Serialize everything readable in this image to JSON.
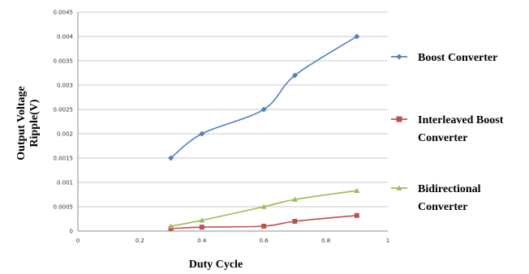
{
  "chart_data": {
    "type": "line",
    "title": "",
    "xlabel": "Duty Cycle",
    "ylabel": [
      "Output Voltage",
      "Ripple(V)"
    ],
    "xlim": [
      0,
      1
    ],
    "ylim": [
      0,
      0.0045
    ],
    "x_ticks": [
      0,
      0.2,
      0.4,
      0.6,
      0.8,
      1
    ],
    "x_tick_labels": [
      "0",
      "0.2",
      "0.4",
      "0.6",
      "0.8",
      "1"
    ],
    "y_ticks": [
      0,
      0.0005,
      0.001,
      0.0015,
      0.002,
      0.0025,
      0.003,
      0.0035,
      0.004,
      0.0045
    ],
    "y_tick_labels": [
      "0",
      "0.0005",
      "0.001",
      "0.0015",
      "0.002",
      "0.0025",
      "0.003",
      "0.0035",
      "0.004",
      "0.0045"
    ],
    "grid": "horizontal",
    "legend_position": "right",
    "series": [
      {
        "name": [
          "Boost Converter"
        ],
        "color": "#4f81bd",
        "marker": "diamond",
        "x": [
          0.3,
          0.4,
          0.6,
          0.7,
          0.9
        ],
        "y": [
          0.0015,
          0.002,
          0.0025,
          0.0032,
          0.004
        ]
      },
      {
        "name": [
          "Interleaved Boost",
          "Converter"
        ],
        "color": "#c0504d",
        "marker": "square",
        "x": [
          0.3,
          0.4,
          0.6,
          0.7,
          0.9
        ],
        "y": [
          5e-05,
          8e-05,
          0.0001,
          0.0002,
          0.00032
        ]
      },
      {
        "name": [
          "Bidirectional",
          "Converter"
        ],
        "color": "#9bbb59",
        "marker": "triangle",
        "x": [
          0.3,
          0.4,
          0.6,
          0.7,
          0.9
        ],
        "y": [
          0.0001,
          0.00022,
          0.0005,
          0.00065,
          0.00083
        ]
      }
    ]
  }
}
